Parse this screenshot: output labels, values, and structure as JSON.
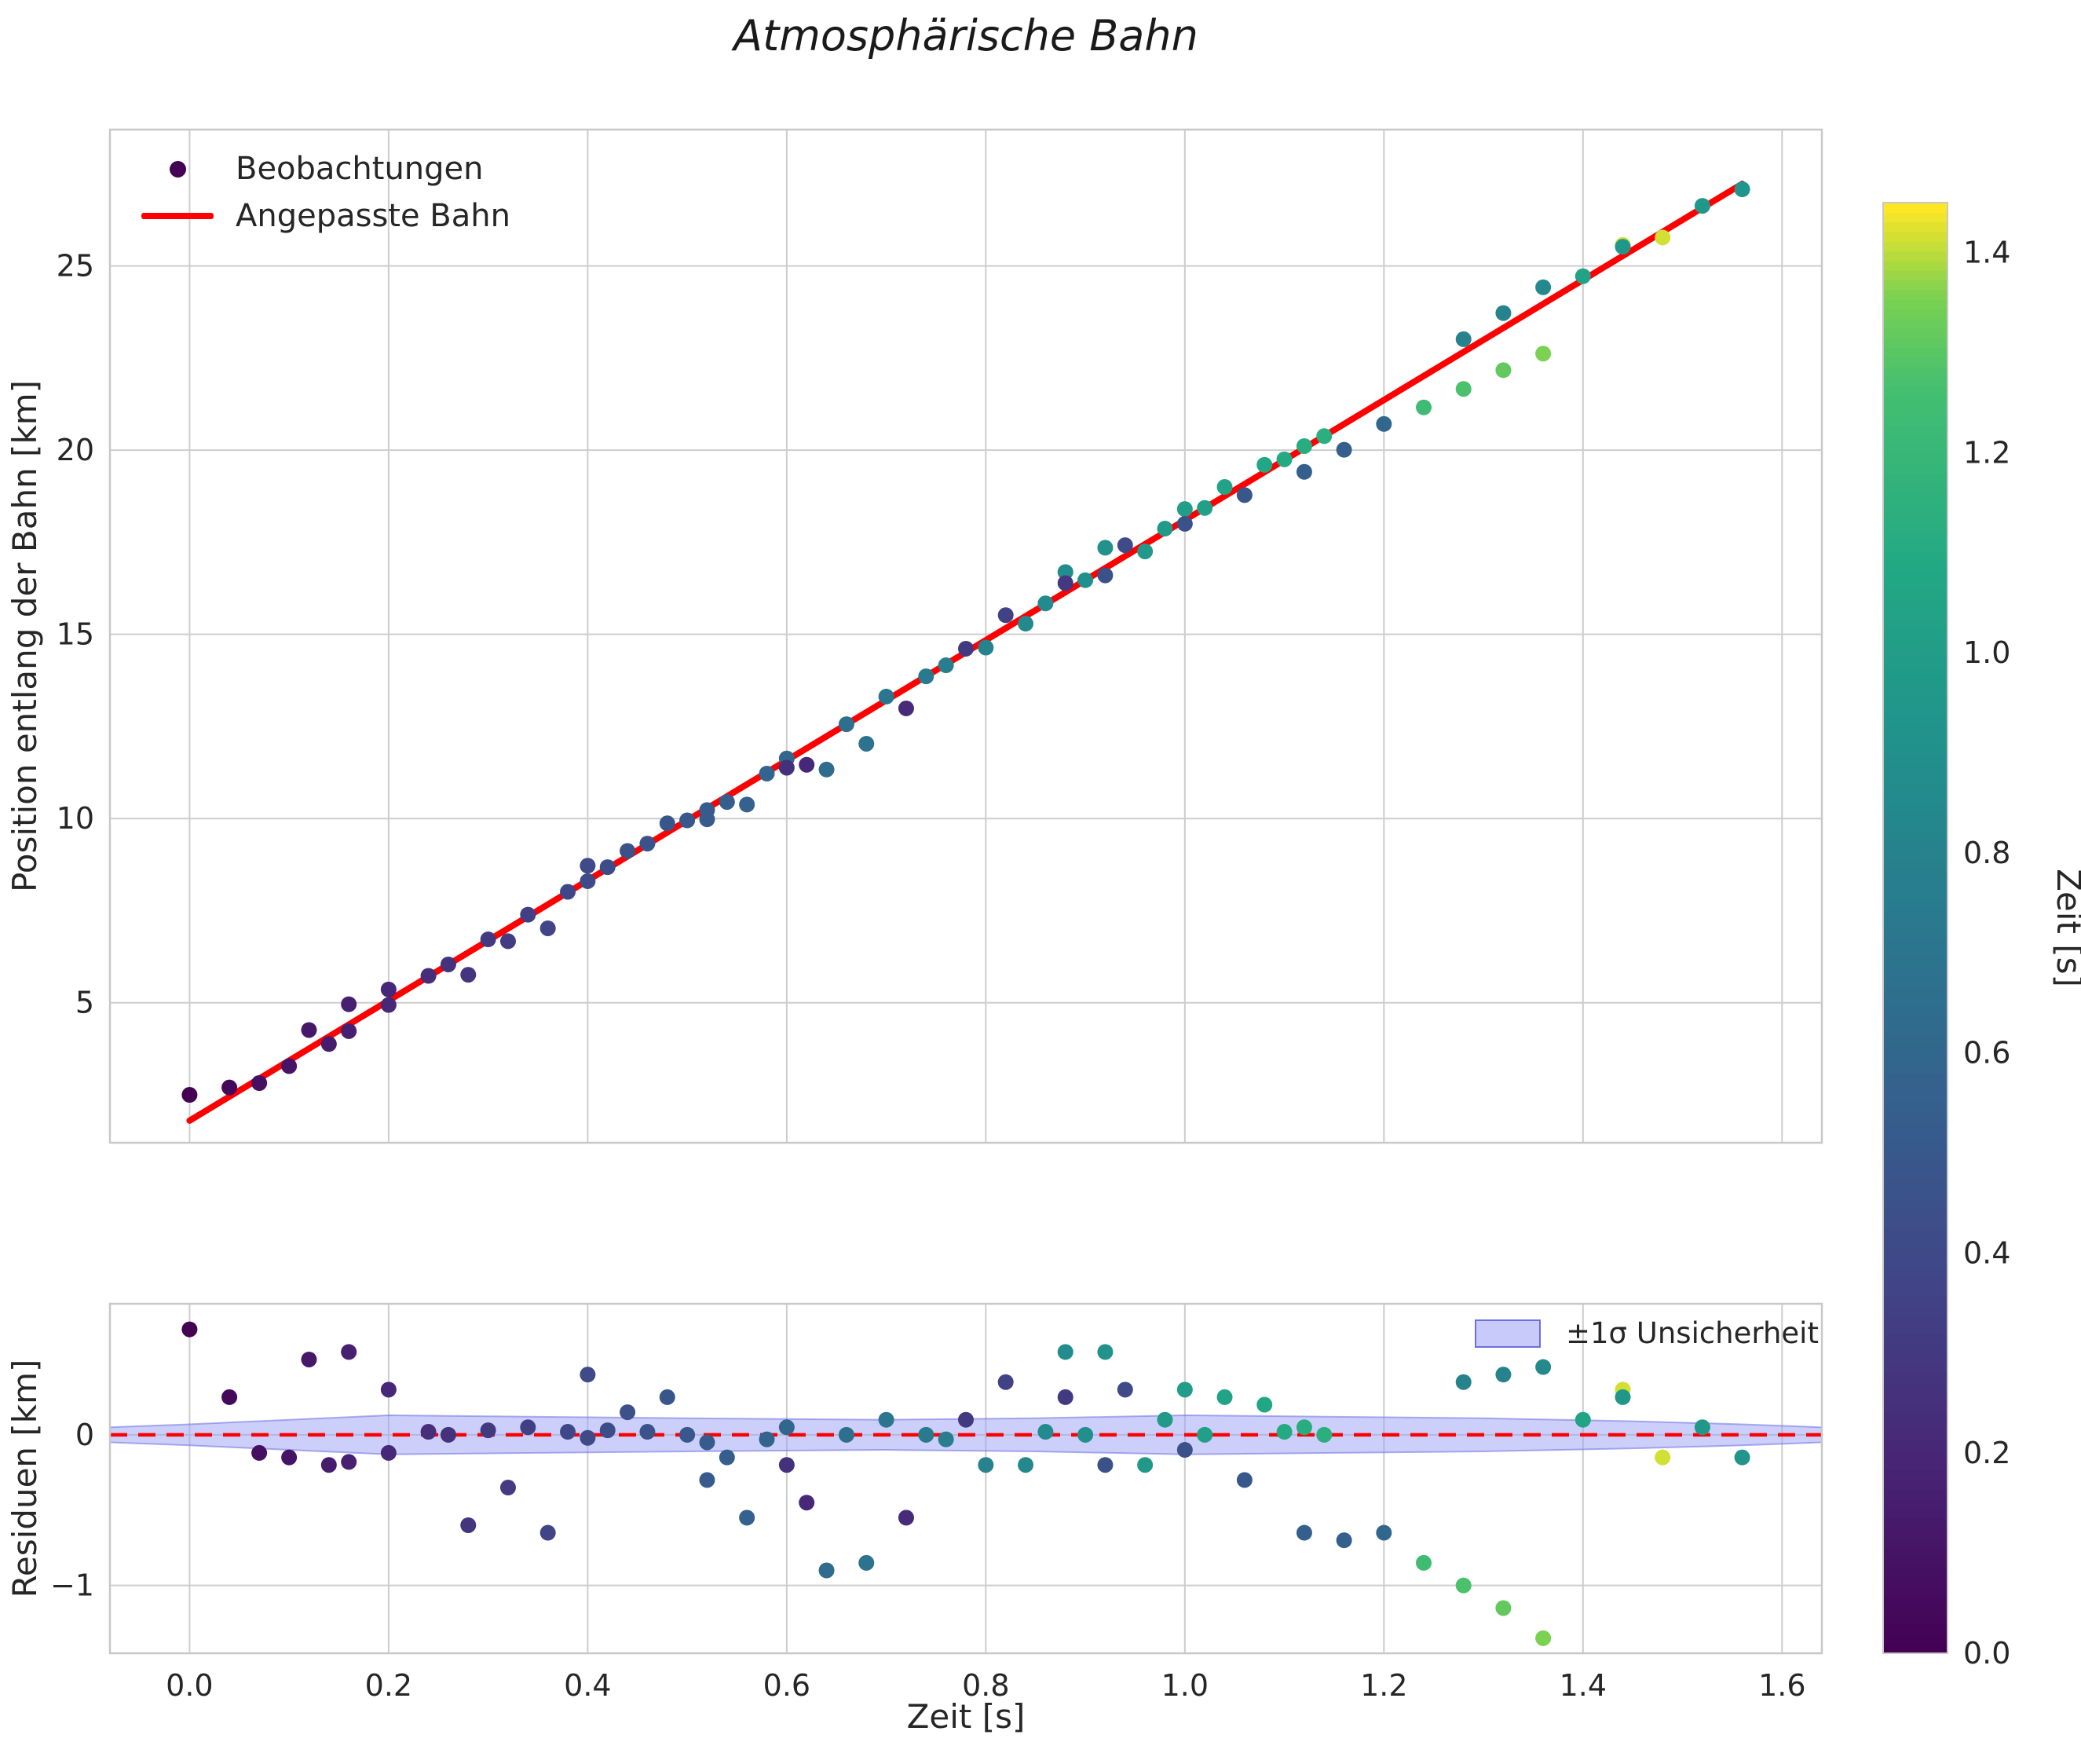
{
  "title": "Atmosphärische Bahn",
  "colors": {
    "fit_line": "#ff0000",
    "zero_line": "#ff0000",
    "band_fill": "#9aa0f5",
    "band_edge": "#6b70e0",
    "legend_dot": "#440154",
    "grid": "#cdcdcd",
    "frame": "#c8c8c8",
    "text": "#262626"
  },
  "colorbar": {
    "label": "Zeit [s]",
    "ticks": [
      0.0,
      0.2,
      0.4,
      0.6,
      0.8,
      1.0,
      1.2,
      1.4
    ],
    "vmin": 0.0,
    "vmax": 1.45,
    "colormap": "viridis",
    "stops": [
      {
        "p": 0.0,
        "c": "#440154"
      },
      {
        "p": 0.125,
        "c": "#482475"
      },
      {
        "p": 0.25,
        "c": "#414487"
      },
      {
        "p": 0.375,
        "c": "#355f8d"
      },
      {
        "p": 0.5,
        "c": "#2a788e"
      },
      {
        "p": 0.625,
        "c": "#21918c"
      },
      {
        "p": 0.75,
        "c": "#22a884"
      },
      {
        "p": 0.875,
        "c": "#44bf70"
      },
      {
        "p": 0.9375,
        "c": "#7ad151"
      },
      {
        "p": 1.0,
        "c": "#fde725"
      }
    ]
  },
  "chart_data": [
    {
      "type": "scatter",
      "title": "Atmosphärische Bahn",
      "xlabel": "Zeit [s]",
      "ylabel": "Position entlang der Bahn [km]",
      "xlim": [
        -0.08,
        1.64
      ],
      "ylim": [
        1.2,
        28.7
      ],
      "xticks": [
        0.0,
        0.2,
        0.4,
        0.6,
        0.8,
        1.0,
        1.2,
        1.4,
        1.6
      ],
      "yticks": [
        5,
        10,
        15,
        20,
        25
      ],
      "grid": true,
      "legend_position": "upper left",
      "legend_entries": [
        "Beobachtungen",
        "Angepasste Bahn"
      ],
      "fit_line": {
        "intercept": 1.8,
        "slope": 16.3,
        "t_range": [
          0.0,
          1.56
        ]
      },
      "color_value": "time [s] mapped with viridis",
      "points_format": "[t, position, residual, color_time]",
      "points": [
        [
          0.0,
          2.5,
          0.7,
          0.0
        ],
        [
          0.04,
          2.7,
          0.25,
          0.04
        ],
        [
          0.07,
          2.82,
          -0.12,
          0.07
        ],
        [
          0.1,
          3.28,
          -0.15,
          0.1
        ],
        [
          0.12,
          4.26,
          0.5,
          0.12
        ],
        [
          0.14,
          3.88,
          -0.2,
          0.14
        ],
        [
          0.16,
          4.96,
          0.55,
          0.16
        ],
        [
          0.16,
          4.23,
          -0.18,
          0.16
        ],
        [
          0.2,
          5.36,
          0.3,
          0.2
        ],
        [
          0.2,
          4.94,
          -0.12,
          0.2
        ],
        [
          0.24,
          5.73,
          0.02,
          0.24
        ],
        [
          0.26,
          6.04,
          0.0,
          0.26
        ],
        [
          0.28,
          5.76,
          -0.6,
          0.28
        ],
        [
          0.3,
          6.72,
          0.03,
          0.3
        ],
        [
          0.32,
          6.67,
          -0.35,
          0.32
        ],
        [
          0.34,
          7.39,
          0.05,
          0.34
        ],
        [
          0.36,
          7.02,
          -0.65,
          0.36
        ],
        [
          0.38,
          8.01,
          0.02,
          0.38
        ],
        [
          0.4,
          8.72,
          0.4,
          0.4
        ],
        [
          0.4,
          8.3,
          -0.02,
          0.4
        ],
        [
          0.42,
          8.68,
          0.03,
          0.42
        ],
        [
          0.44,
          9.12,
          0.15,
          0.44
        ],
        [
          0.46,
          9.32,
          0.02,
          0.46
        ],
        [
          0.48,
          9.87,
          0.25,
          0.48
        ],
        [
          0.5,
          9.95,
          0.0,
          0.5
        ],
        [
          0.52,
          9.98,
          -0.3,
          0.52
        ],
        [
          0.52,
          10.23,
          -0.05,
          0.52
        ],
        [
          0.54,
          10.45,
          -0.15,
          0.54
        ],
        [
          0.56,
          10.38,
          -0.55,
          0.56
        ],
        [
          0.58,
          11.22,
          -0.03,
          0.58
        ],
        [
          0.6,
          11.63,
          0.05,
          0.6
        ],
        [
          0.6,
          11.38,
          -0.2,
          0.25
        ],
        [
          0.62,
          11.46,
          -0.45,
          0.2
        ],
        [
          0.64,
          11.33,
          -0.9,
          0.64
        ],
        [
          0.66,
          12.56,
          0.0,
          0.66
        ],
        [
          0.68,
          12.03,
          -0.85,
          0.68
        ],
        [
          0.7,
          13.31,
          0.1,
          0.7
        ],
        [
          0.72,
          12.99,
          -0.55,
          0.22
        ],
        [
          0.74,
          13.86,
          0.0,
          0.74
        ],
        [
          0.76,
          14.16,
          -0.03,
          0.76
        ],
        [
          0.78,
          14.61,
          0.1,
          0.3
        ],
        [
          0.8,
          14.64,
          -0.2,
          0.8
        ],
        [
          0.82,
          15.52,
          0.35,
          0.35
        ],
        [
          0.84,
          15.29,
          -0.2,
          0.84
        ],
        [
          0.86,
          15.84,
          0.02,
          0.86
        ],
        [
          0.88,
          16.69,
          0.55,
          0.88
        ],
        [
          0.88,
          16.39,
          0.25,
          0.3
        ],
        [
          0.9,
          16.47,
          0.0,
          0.9
        ],
        [
          0.92,
          17.35,
          0.55,
          0.92
        ],
        [
          0.92,
          16.6,
          -0.2,
          0.45
        ],
        [
          0.94,
          17.42,
          0.3,
          0.4
        ],
        [
          0.96,
          17.25,
          -0.2,
          0.96
        ],
        [
          0.98,
          17.87,
          0.1,
          0.98
        ],
        [
          1.0,
          18.4,
          0.3,
          1.0
        ],
        [
          1.0,
          18.0,
          -0.1,
          0.45
        ],
        [
          1.02,
          18.43,
          0.0,
          1.02
        ],
        [
          1.04,
          19.0,
          0.25,
          1.04
        ],
        [
          1.06,
          18.78,
          -0.3,
          0.5
        ],
        [
          1.08,
          19.6,
          0.2,
          1.08
        ],
        [
          1.1,
          19.75,
          0.02,
          1.1
        ],
        [
          1.12,
          19.41,
          -0.65,
          0.55
        ],
        [
          1.12,
          20.11,
          0.05,
          1.12
        ],
        [
          1.14,
          20.38,
          0.0,
          1.14
        ],
        [
          1.16,
          20.01,
          -0.7,
          0.55
        ],
        [
          1.2,
          20.71,
          -0.65,
          0.6
        ],
        [
          1.24,
          21.16,
          -0.85,
          1.24
        ],
        [
          1.28,
          23.01,
          0.35,
          0.8
        ],
        [
          1.28,
          21.66,
          -1.0,
          1.28
        ],
        [
          1.32,
          23.72,
          0.4,
          0.8
        ],
        [
          1.32,
          22.17,
          -1.15,
          1.32
        ],
        [
          1.36,
          24.42,
          0.45,
          0.85
        ],
        [
          1.36,
          22.62,
          -1.35,
          1.36
        ],
        [
          1.4,
          24.72,
          0.1,
          1.05
        ],
        [
          1.44,
          25.57,
          0.3,
          1.42
        ],
        [
          1.44,
          25.52,
          0.25,
          0.95
        ],
        [
          1.48,
          25.77,
          -0.15,
          1.42
        ],
        [
          1.52,
          26.63,
          0.05,
          0.95
        ],
        [
          1.56,
          27.08,
          -0.15,
          0.93
        ]
      ]
    },
    {
      "type": "scatter",
      "xlabel": "Zeit [s]",
      "ylabel": "Residuen [km]",
      "xlim": [
        -0.08,
        1.64
      ],
      "ylim": [
        -1.45,
        0.87
      ],
      "xticks": [
        0.0,
        0.2,
        0.4,
        0.6,
        0.8,
        1.0,
        1.2,
        1.4,
        1.6
      ],
      "yticks": [
        -1,
        0
      ],
      "grid": true,
      "zero_line": true,
      "legend_position": "upper right",
      "legend_entries": [
        "±1σ Unsicherheit"
      ],
      "band": {
        "t": [
          -0.08,
          0.0,
          0.1,
          0.2,
          0.35,
          0.5,
          0.7,
          0.85,
          1.0,
          1.15,
          1.3,
          1.45,
          1.56,
          1.64
        ],
        "sigma": [
          0.05,
          0.07,
          0.1,
          0.13,
          0.12,
          0.11,
          0.1,
          0.11,
          0.13,
          0.12,
          0.11,
          0.09,
          0.07,
          0.05
        ]
      }
    }
  ]
}
